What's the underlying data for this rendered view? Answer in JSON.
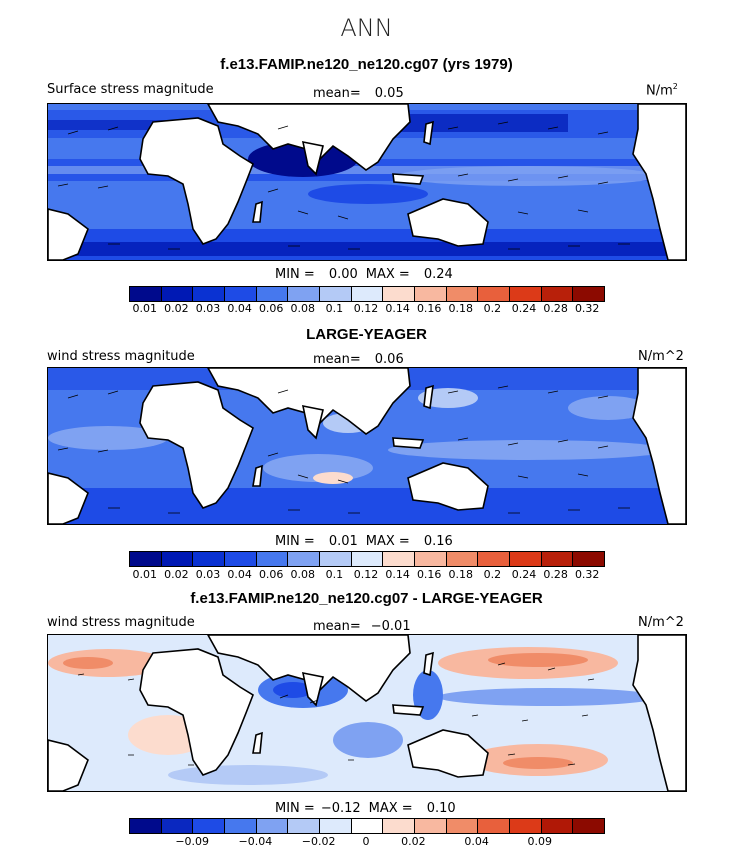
{
  "figure_title": "ANN",
  "panels": [
    {
      "title": "f.e13.FAMIP.ne120_ne120.cg07 (yrs 1979)",
      "left_label": "Surface stress magnitude",
      "mean_label": "mean=",
      "mean_value": "0.05",
      "units_base": "N/m",
      "units_sup": "2",
      "min_label": "MIN =",
      "min_value": "0.00",
      "max_label": "MAX =",
      "max_value": "0.24",
      "colorbar_ticks": [
        "0.01",
        "0.02",
        "0.03",
        "0.04",
        "0.06",
        "0.08",
        "0.1",
        "0.12",
        "0.14",
        "0.16",
        "0.18",
        "0.2",
        "0.24",
        "0.28",
        "0.32"
      ]
    },
    {
      "title": "LARGE-YEAGER",
      "left_label": "wind stress magnitude",
      "mean_label": "mean=",
      "mean_value": "0.06",
      "units": "N/m^2",
      "min_label": "MIN =",
      "min_value": "0.01",
      "max_label": "MAX =",
      "max_value": "0.16",
      "colorbar_ticks": [
        "0.01",
        "0.02",
        "0.03",
        "0.04",
        "0.06",
        "0.08",
        "0.1",
        "0.12",
        "0.14",
        "0.16",
        "0.18",
        "0.2",
        "0.24",
        "0.28",
        "0.32"
      ]
    },
    {
      "title": "f.e13.FAMIP.ne120_ne120.cg07 - LARGE-YEAGER",
      "left_label": "wind stress magnitude",
      "mean_label": "mean=",
      "mean_value": "−0.01",
      "units": "N/m^2",
      "min_label": "MIN =",
      "min_value": "−0.12",
      "max_label": "MAX =",
      "max_value": "0.10",
      "colorbar_ticks": [
        "−0.09",
        "−0.04",
        "−0.02",
        "0",
        "0.02",
        "0.04",
        "0.09"
      ]
    }
  ],
  "colors": {
    "seq": [
      "#000a8c",
      "#0019b4",
      "#0a32d2",
      "#1e4be6",
      "#4678ee",
      "#7fa2f2",
      "#b4caf6",
      "#ddeafc",
      "#fcdcce",
      "#f8b8a0",
      "#f08c68",
      "#e8603c",
      "#dc3a18",
      "#b8200a",
      "#8c0a00"
    ],
    "diff": [
      "#000a8c",
      "#0a28c0",
      "#1e4be6",
      "#4678ee",
      "#7fa2f2",
      "#b4caf6",
      "#ddeafc",
      "#ffffff",
      "#fcdcce",
      "#f8b8a0",
      "#f08c68",
      "#e8603c",
      "#dc3a18",
      "#b01806",
      "#8c0a00"
    ]
  }
}
